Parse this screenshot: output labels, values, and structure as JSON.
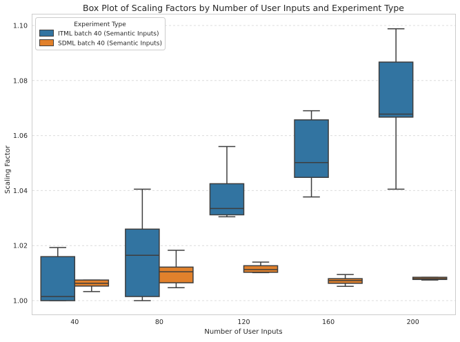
{
  "chart_data": {
    "type": "box",
    "title": "Box Plot of Scaling Factors by Number of User Inputs and Experiment Type",
    "xlabel": "Number of User Inputs",
    "ylabel": "Scaling Factor",
    "categories": [
      "40",
      "80",
      "120",
      "160",
      "200"
    ],
    "ylim": [
      0.995,
      1.104
    ],
    "yticks": [
      1.0,
      1.02,
      1.04,
      1.06,
      1.08,
      1.1
    ],
    "ytick_labels": [
      "1.00",
      "1.02",
      "1.04",
      "1.06",
      "1.08",
      "1.10"
    ],
    "grid": "horizontal dashed",
    "legend": {
      "title": "Experiment Type",
      "placement": "top-left"
    },
    "series": [
      {
        "name": "ITML batch 40 (Semantic Inputs)",
        "color": "#3274a1",
        "boxes": [
          {
            "min": 1.0,
            "q1": 1.0,
            "median": 1.0015,
            "q3": 1.016,
            "max": 1.0193
          },
          {
            "min": 1.0,
            "q1": 1.0015,
            "median": 1.0165,
            "q3": 1.026,
            "max": 1.0405
          },
          {
            "min": 1.0305,
            "q1": 1.0312,
            "median": 1.0335,
            "q3": 1.0425,
            "max": 1.056
          },
          {
            "min": 1.0377,
            "q1": 1.0448,
            "median": 1.0502,
            "q3": 1.0657,
            "max": 1.069
          },
          {
            "min": 1.0405,
            "q1": 1.0667,
            "median": 1.0678,
            "q3": 1.0867,
            "max": 1.0988
          }
        ]
      },
      {
        "name": "SDML batch 40 (Semantic Inputs)",
        "color": "#e1812c",
        "boxes": [
          {
            "min": 1.0033,
            "q1": 1.0053,
            "median": 1.0063,
            "q3": 1.0075,
            "max": 1.0075
          },
          {
            "min": 1.0047,
            "q1": 1.0065,
            "median": 1.0105,
            "q3": 1.0122,
            "max": 1.0183
          },
          {
            "min": 1.0102,
            "q1": 1.0103,
            "median": 1.0113,
            "q3": 1.0127,
            "max": 1.014
          },
          {
            "min": 1.0052,
            "q1": 1.0063,
            "median": 1.0073,
            "q3": 1.008,
            "max": 1.0095
          },
          {
            "min": 1.0075,
            "q1": 1.0077,
            "median": 1.008,
            "q3": 1.0085,
            "max": 1.0085
          }
        ]
      }
    ]
  }
}
